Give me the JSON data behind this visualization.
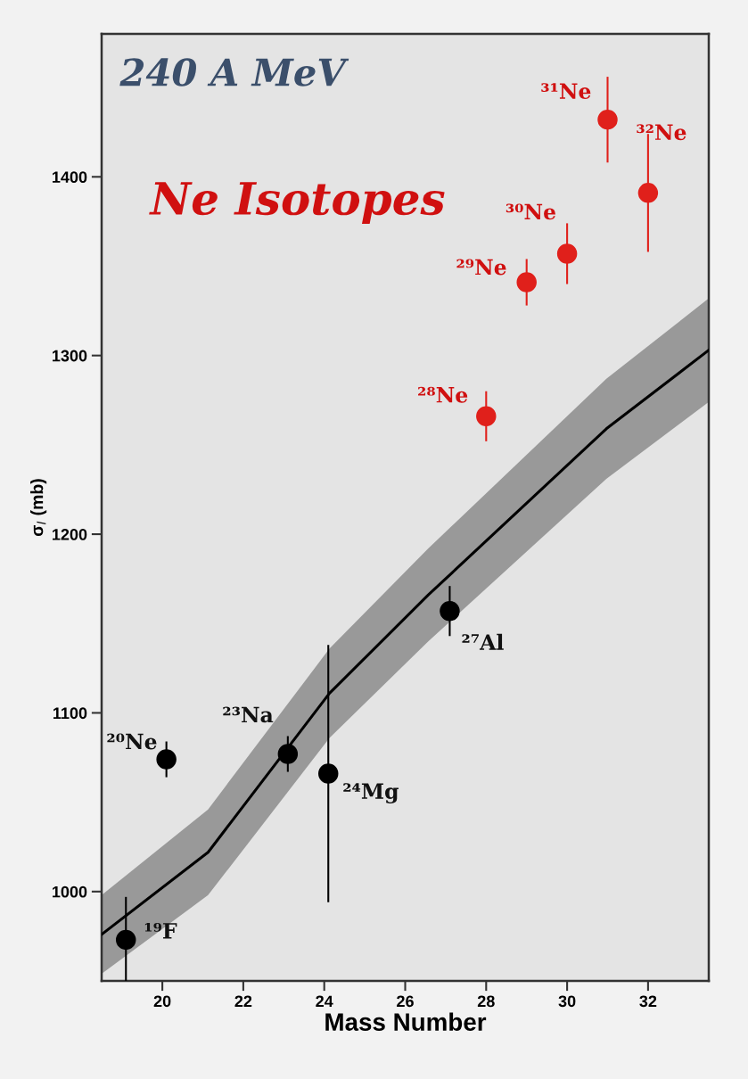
{
  "chart_data": {
    "type": "scatter",
    "xlabel": "Mass Number",
    "ylabel": "σ$_{I}$ (mb)",
    "xlim": [
      18.5,
      33.5
    ],
    "ylim": [
      950,
      1480
    ],
    "xticks": [
      20,
      22,
      24,
      26,
      28,
      30,
      32
    ],
    "yticks": [
      1000,
      1100,
      1200,
      1300,
      1400
    ],
    "grid": false,
    "legend": false,
    "series": [
      {
        "type": "line",
        "marker": "none",
        "color": "#000000",
        "x": [
          18.5,
          21.13,
          24.13,
          26.57,
          30.97,
          33.5
        ],
        "values": [
          976,
          1022,
          1111,
          1166,
          1259,
          1303
        ],
        "lower": [
          954,
          998,
          1086,
          1140,
          1231,
          1274
        ],
        "upper": [
          998,
          1046,
          1136,
          1192,
          1287,
          1332
        ]
      },
      {
        "marker": "circle",
        "color": "#000000",
        "x": [
          19.1,
          20.1,
          23.1,
          24.1,
          27.1
        ],
        "values": [
          973,
          1074,
          1077,
          1066,
          1157
        ],
        "errors": [
          [
            950,
            997
          ],
          10,
          10,
          72,
          14
        ]
      },
      {
        "marker": "circle",
        "color": "#e0201b",
        "x": [
          28,
          29,
          30,
          31,
          32
        ],
        "values": [
          1266,
          1341,
          1357,
          1432,
          1391
        ],
        "errors": [
          14,
          13,
          17,
          24,
          33
        ]
      }
    ],
    "annotations": [
      "240 A MeV",
      "Ne Isotopes",
      {
        "text": "¹⁹F",
        "x": 19.1,
        "y": 973
      },
      {
        "text": "²⁰Ne",
        "x": 20.1,
        "y": 1074
      },
      {
        "text": "²³Na",
        "x": 23.1,
        "y": 1077
      },
      {
        "text": "²⁴Mg",
        "x": 24.1,
        "y": 1066
      },
      {
        "text": "²⁷Al",
        "x": 27.1,
        "y": 1157
      },
      {
        "text": "²⁸Ne",
        "x": 28,
        "y": 1266
      },
      {
        "text": "²⁹Ne",
        "x": 29,
        "y": 1341
      },
      {
        "text": "³⁰Ne",
        "x": 30,
        "y": 1357
      },
      {
        "text": "³¹Ne",
        "x": 31,
        "y": 1432
      },
      "³²Ne"
    ]
  }
}
